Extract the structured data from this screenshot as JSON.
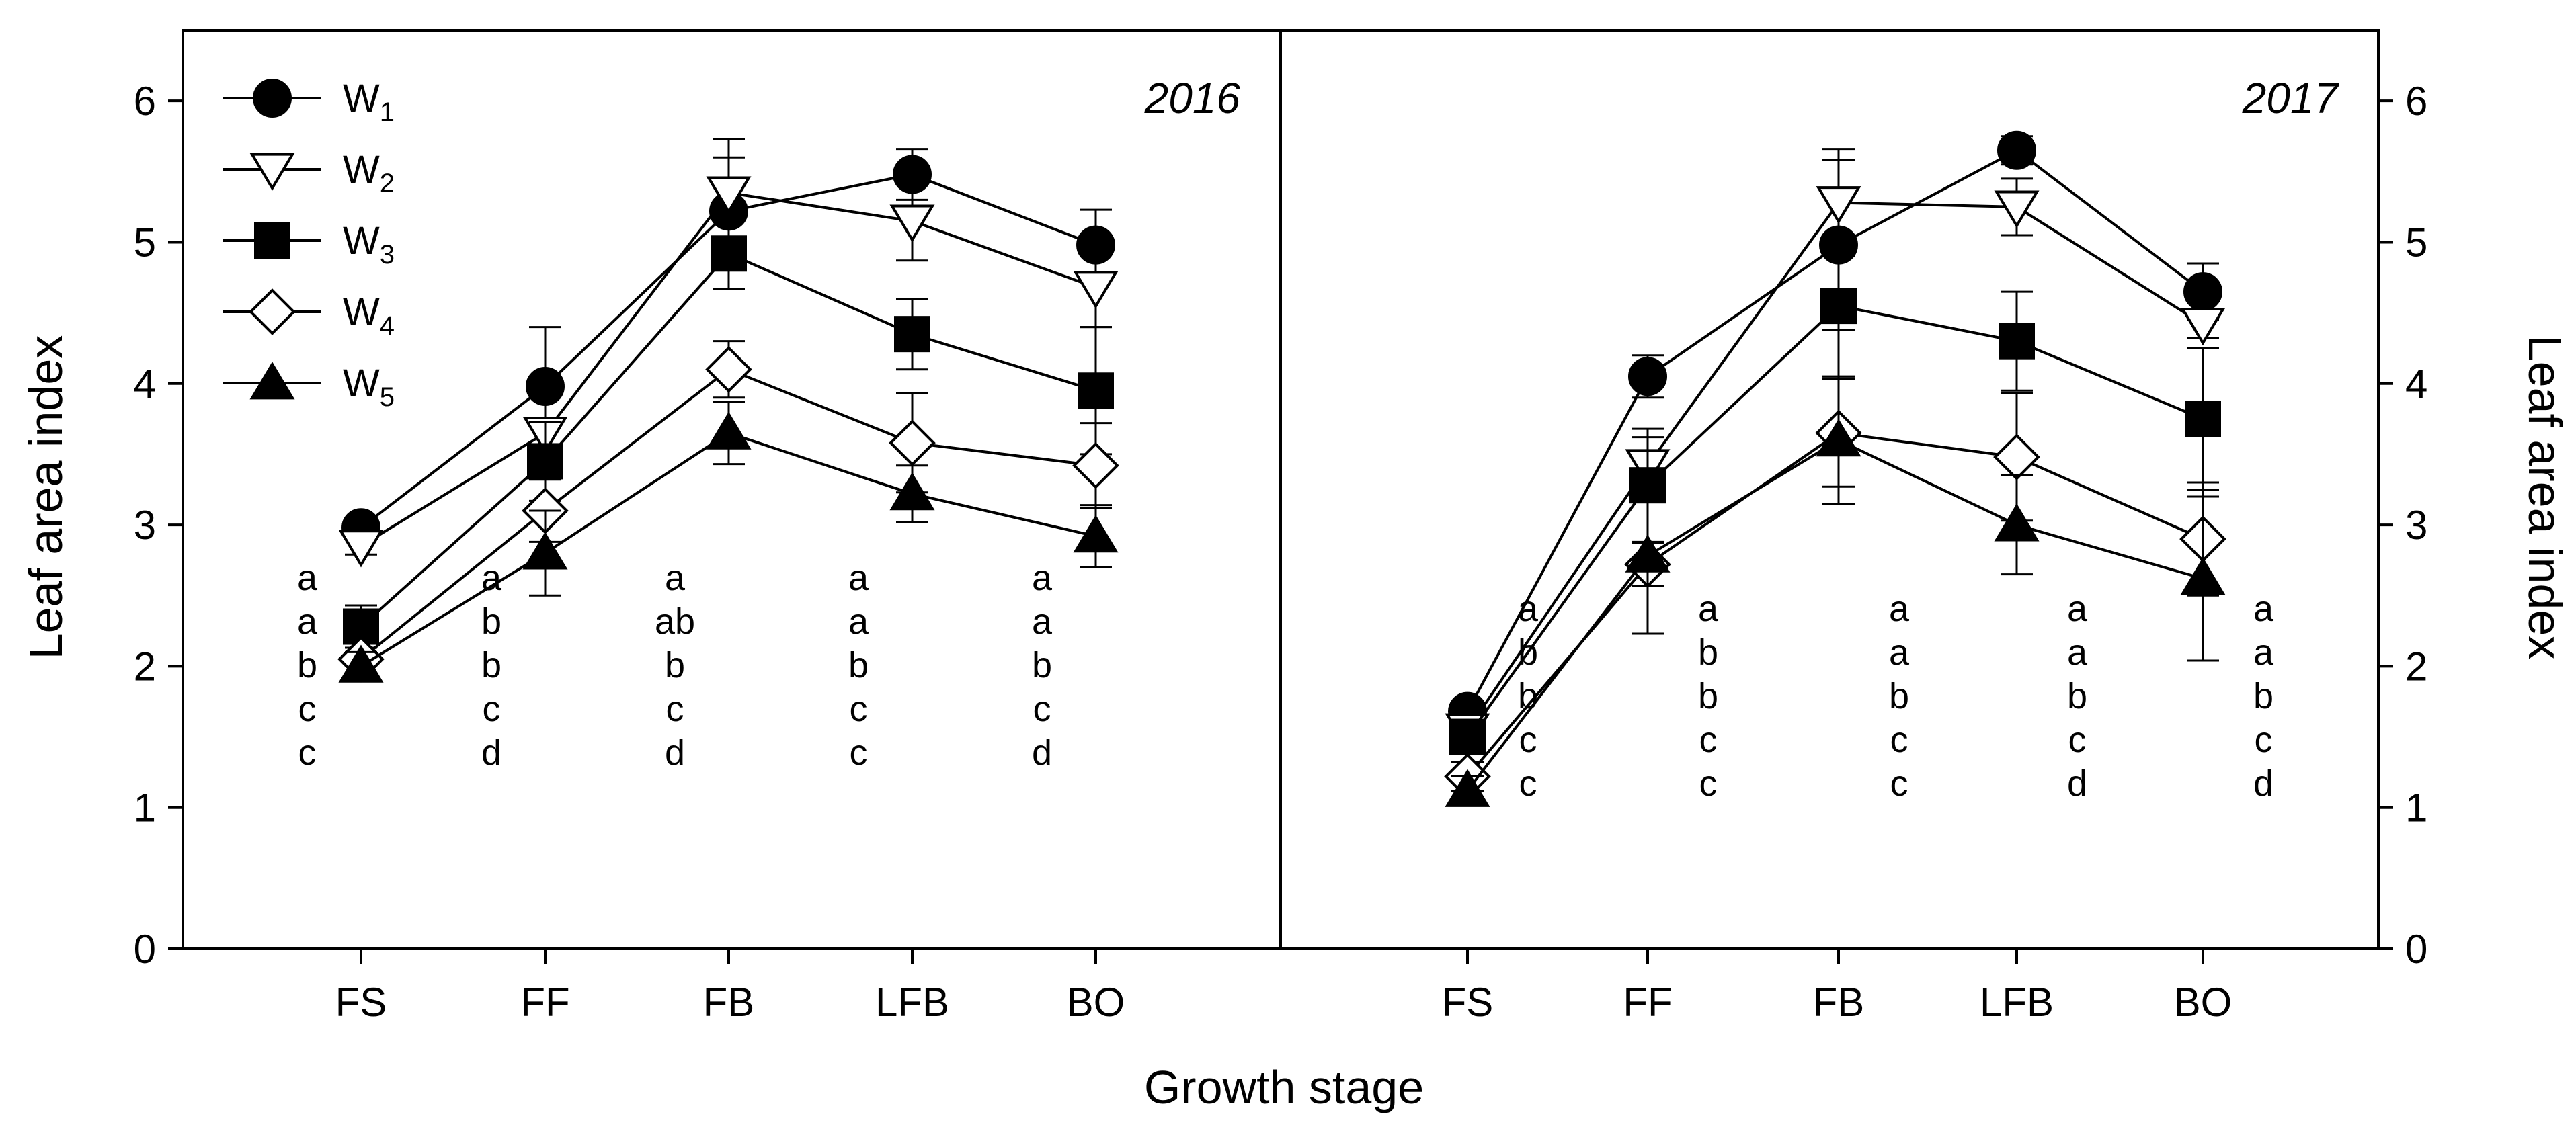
{
  "figure": {
    "xlabel": "Growth stage",
    "ylabel_left": "Leaf area index",
    "ylabel_right": "Leaf area index"
  },
  "legend": {
    "position": "top-left",
    "entries": [
      {
        "base": "W",
        "sub": "1",
        "marker": "filled-circle"
      },
      {
        "base": "W",
        "sub": "2",
        "marker": "open-triangle-down"
      },
      {
        "base": "W",
        "sub": "3",
        "marker": "filled-square"
      },
      {
        "base": "W",
        "sub": "4",
        "marker": "open-diamond"
      },
      {
        "base": "W",
        "sub": "5",
        "marker": "filled-triangle-up"
      }
    ]
  },
  "chart_data": [
    {
      "type": "line",
      "title": "2016",
      "categories": [
        "FS",
        "FF",
        "FB",
        "LFB",
        "BO"
      ],
      "xlabel": "Growth stage",
      "ylabel": "Leaf area index",
      "ylim": [
        0,
        6.5
      ],
      "yticks": [
        0,
        1,
        2,
        3,
        4,
        5,
        6
      ],
      "series": [
        {
          "name": "W1",
          "marker": "filled-circle",
          "values": [
            2.98,
            3.98,
            5.22,
            5.48,
            4.98
          ],
          "errors": [
            0.06,
            0.42,
            0.38,
            0.18,
            0.25
          ]
        },
        {
          "name": "W2",
          "marker": "open-triangle-down",
          "values": [
            2.85,
            3.65,
            5.35,
            5.15,
            4.68
          ],
          "errors": [
            0.06,
            0.25,
            0.38,
            0.28,
            0.28
          ]
        },
        {
          "name": "W3",
          "marker": "filled-square",
          "values": [
            2.28,
            3.45,
            4.92,
            4.35,
            3.95
          ],
          "errors": [
            0.15,
            0.28,
            0.25,
            0.25,
            0.45
          ]
        },
        {
          "name": "W4",
          "marker": "open-diamond",
          "values": [
            2.05,
            3.1,
            4.1,
            3.58,
            3.42
          ],
          "errors": [
            0.12,
            0.22,
            0.2,
            0.35,
            0.3
          ]
        },
        {
          "name": "W5",
          "marker": "filled-triangle-up",
          "values": [
            2.0,
            2.8,
            3.65,
            3.22,
            2.92
          ],
          "errors": [
            0.1,
            0.3,
            0.22,
            0.2,
            0.22
          ]
        }
      ],
      "significance_letters": [
        [
          "a",
          "a",
          "b",
          "c",
          "c"
        ],
        [
          "a",
          "b",
          "b",
          "c",
          "d"
        ],
        [
          "a",
          "ab",
          "b",
          "c",
          "d"
        ],
        [
          "a",
          "a",
          "b",
          "c",
          "c"
        ],
        [
          "a",
          "a",
          "b",
          "c",
          "d"
        ]
      ]
    },
    {
      "type": "line",
      "title": "2017",
      "categories": [
        "FS",
        "FF",
        "FB",
        "LFB",
        "BO"
      ],
      "xlabel": "Growth stage",
      "ylabel": "Leaf area index",
      "ylim": [
        0,
        6.5
      ],
      "yticks": [
        0,
        1,
        2,
        3,
        4,
        5,
        6
      ],
      "series": [
        {
          "name": "W1",
          "marker": "filled-circle",
          "values": [
            1.68,
            4.05,
            4.98,
            5.65,
            4.65
          ],
          "errors": [
            0.06,
            0.15,
            0.6,
            0.1,
            0.2
          ]
        },
        {
          "name": "W2",
          "marker": "open-triangle-down",
          "values": [
            1.55,
            3.42,
            5.28,
            5.25,
            4.42
          ],
          "errors": [
            0.06,
            0.2,
            0.38,
            0.2,
            0.1
          ]
        },
        {
          "name": "W3",
          "marker": "filled-square",
          "values": [
            1.5,
            3.28,
            4.55,
            4.3,
            3.75
          ],
          "errors": [
            0.1,
            0.4,
            0.5,
            0.35,
            0.5
          ]
        },
        {
          "name": "W4",
          "marker": "open-diamond",
          "values": [
            1.22,
            2.72,
            3.65,
            3.48,
            2.9
          ],
          "errors": [
            0.1,
            0.15,
            0.38,
            0.45,
            0.4
          ]
        },
        {
          "name": "W5",
          "marker": "filled-triangle-up",
          "values": [
            1.12,
            2.78,
            3.6,
            3.0,
            2.62
          ],
          "errors": [
            0.1,
            0.55,
            0.45,
            0.35,
            0.58
          ]
        }
      ],
      "significance_letters": [
        [
          "a",
          "b",
          "b",
          "c",
          "c"
        ],
        [
          "a",
          "b",
          "b",
          "c",
          "c"
        ],
        [
          "a",
          "a",
          "b",
          "c",
          "c"
        ],
        [
          "a",
          "a",
          "b",
          "c",
          "d"
        ],
        [
          "a",
          "a",
          "b",
          "c",
          "d"
        ]
      ]
    }
  ]
}
